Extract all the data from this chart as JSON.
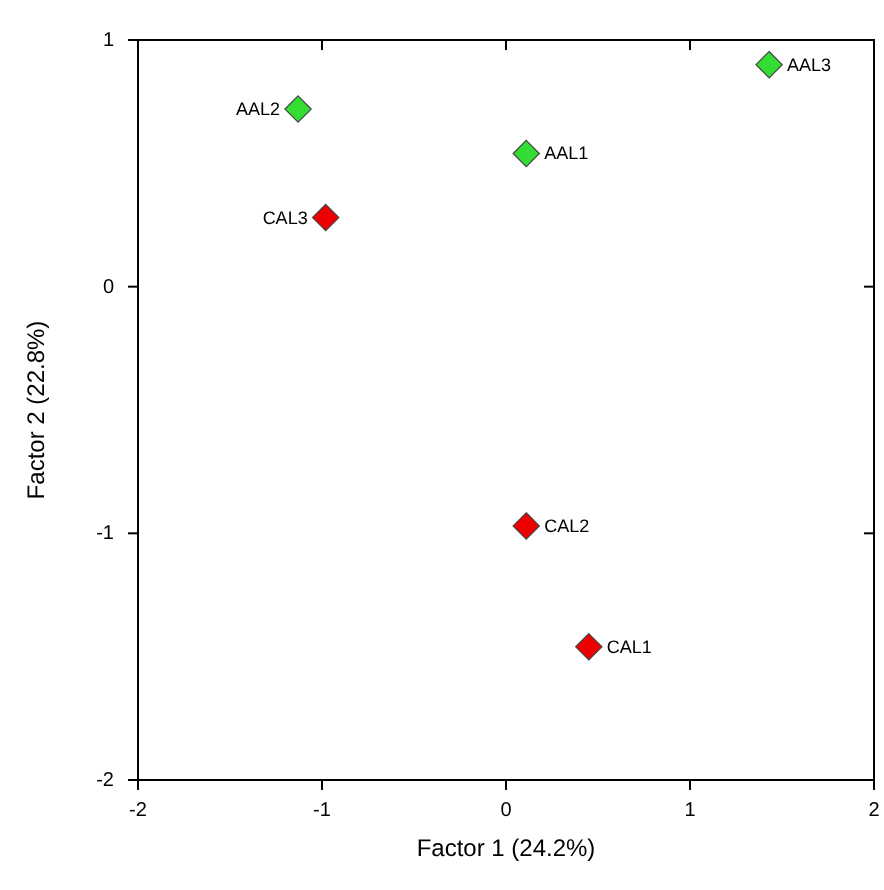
{
  "chart_data": {
    "type": "scatter",
    "xlabel": "Factor 1 (24.2%)",
    "ylabel": "Factor 2 (22.8%)",
    "xlim": [
      -2,
      2
    ],
    "ylim": [
      -2,
      1
    ],
    "xticks": [
      -2,
      -1,
      0,
      1,
      2
    ],
    "yticks": [
      -2,
      -1,
      0,
      1
    ],
    "marker": "diamond",
    "grid": false,
    "series": [
      {
        "color": "#33dd33",
        "x": [
          1.43,
          -1.13,
          0.11
        ],
        "values": [
          0.9,
          0.72,
          0.54
        ]
      },
      {
        "color": "#ee0000",
        "x": [
          -0.98,
          0.11,
          0.45
        ],
        "values": [
          0.28,
          -0.97,
          -1.46
        ]
      }
    ],
    "annotations": [
      {
        "text": "AAL3",
        "x": 1.43,
        "y": 0.9
      },
      {
        "text": "AAL2",
        "x": -1.13,
        "y": 0.72
      },
      {
        "text": "AAL1",
        "x": 0.11,
        "y": 0.54
      },
      {
        "text": "CAL3",
        "x": -0.98,
        "y": 0.28
      },
      {
        "text": "CAL2",
        "x": 0.11,
        "y": -0.97
      },
      {
        "text": "CAL1",
        "x": 0.45,
        "y": -1.46
      }
    ]
  }
}
